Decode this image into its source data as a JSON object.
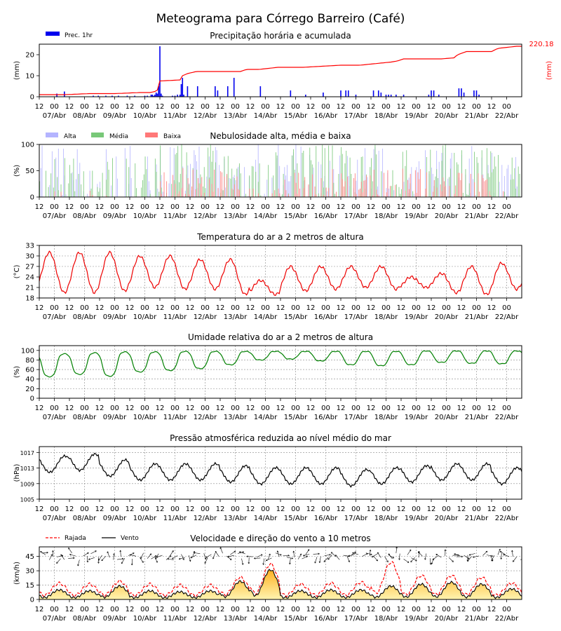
{
  "title": "Meteograma para Córrego Barreiro (Café)",
  "time_axis": {
    "hour_ticks": [
      "12",
      "00",
      "12",
      "00",
      "12",
      "00",
      "12",
      "00",
      "12",
      "00",
      "12",
      "00",
      "12",
      "00",
      "12",
      "00",
      "12",
      "00",
      "12",
      "00",
      "12",
      "00",
      "12",
      "00",
      "12",
      "00",
      "12",
      "00",
      "12",
      "00",
      "12",
      "00"
    ],
    "day_labels": [
      "07/Abr",
      "08/Abr",
      "09/Abr",
      "10/Abr",
      "11/Abr",
      "12/Abr",
      "13/Abr",
      "14/Abr",
      "15/Abr",
      "16/Abr",
      "17/Abr",
      "18/Abr",
      "19/Abr",
      "20/Abr",
      "21/Abr",
      "22/Abr"
    ]
  },
  "chart_data": [
    {
      "type": "bar",
      "title": "Precipitação horária e acumulada",
      "ylabel": "(mm)",
      "ylabel_right": "(mm)",
      "right_value_label": "220.18",
      "ylim": [
        0,
        25
      ],
      "yticks": [
        "0",
        "10",
        "20"
      ],
      "legend": [
        "Prec. 1hr"
      ],
      "colors": {
        "bars": "#0000ee",
        "accum": "#ff0000"
      },
      "series": [
        {
          "name": "Prec. 1hr",
          "type": "bar",
          "x": [
            14,
            20,
            43,
            47,
            53,
            58,
            63,
            70,
            76,
            84,
            86,
            89,
            90,
            91,
            92,
            93,
            94,
            95,
            96,
            97,
            98,
            106,
            108,
            110,
            112,
            113,
            114,
            115,
            118,
            126,
            140,
            142,
            150,
            155,
            176,
            200,
            212,
            226,
            240,
            244,
            246,
            252,
            266,
            270,
            272,
            276,
            278,
            280,
            284,
            290,
            310,
            312,
            314,
            318,
            334,
            336,
            338,
            346,
            348,
            350
          ],
          "values": [
            1.5,
            2.5,
            0.5,
            0.5,
            0.5,
            0.5,
            0.5,
            0.5,
            0.5,
            0.5,
            0.5,
            1,
            1,
            0.5,
            1,
            2,
            1.5,
            5,
            24,
            1.5,
            0.5,
            0.5,
            0.5,
            1,
            1,
            6,
            9,
            1,
            5,
            5,
            5,
            3,
            5,
            9,
            5,
            3,
            1,
            2,
            3,
            3,
            3,
            1,
            3,
            3,
            2,
            1,
            1,
            1,
            1,
            1,
            1,
            3,
            3,
            1,
            4,
            4,
            2,
            3,
            3,
            1
          ]
        },
        {
          "name": "acumulada",
          "type": "line",
          "x": [
            0,
            20,
            40,
            60,
            80,
            88,
            92,
            95,
            96,
            112,
            114,
            118,
            125,
            160,
            165,
            175,
            190,
            210,
            225,
            240,
            245,
            255,
            280,
            285,
            290,
            320,
            330,
            333,
            340,
            360,
            365,
            380
          ],
          "values": [
            1,
            1,
            1.5,
            1.5,
            2,
            2,
            2.5,
            3.5,
            7.5,
            8,
            10,
            11,
            12,
            12,
            13,
            13,
            14,
            14,
            14.5,
            15,
            15,
            15,
            16.5,
            17,
            18,
            18,
            18.5,
            20,
            21.5,
            21.5,
            23,
            24
          ]
        }
      ]
    },
    {
      "type": "bar",
      "title": "Nebulosidade alta, média e baixa",
      "ylabel": "(%)",
      "ylim": [
        0,
        100
      ],
      "yticks": [
        "0",
        "50",
        "100"
      ],
      "legend": [
        "Alta",
        "Média",
        "Baixa"
      ],
      "colors": {
        "alta": "#b4b4ff",
        "media": "#78c878",
        "baixa": "#ff7878"
      },
      "series": [
        {
          "name": "Alta",
          "key": "alta"
        },
        {
          "name": "Média",
          "key": "media"
        },
        {
          "name": "Baixa",
          "key": "baixa"
        }
      ]
    },
    {
      "type": "line",
      "title": "Temperatura do ar a 2 metros de altura",
      "ylabel": "(°C)",
      "ylim": [
        18,
        33
      ],
      "yticks": [
        "18",
        "21",
        "24",
        "27",
        "30",
        "33"
      ],
      "colors": {
        "line": "#ee0000"
      },
      "series": [
        {
          "name": "",
          "min": [
            20,
            19.5,
            19.5,
            20,
            21,
            20.5,
            20.5,
            19,
            19,
            20,
            20.5,
            21,
            20.5,
            21,
            19.5,
            19,
            20.5,
            20.5
          ],
          "max": [
            31,
            31,
            31,
            30,
            30,
            29,
            29,
            23,
            27,
            27,
            27,
            27,
            24,
            25,
            27,
            28
          ]
        }
      ]
    },
    {
      "type": "line",
      "title": "Umidade relativa do ar a 2 metros de altura",
      "ylabel": "(%)",
      "ylim": [
        0,
        110
      ],
      "yticks": [
        "0",
        "20",
        "40",
        "60",
        "80",
        "100"
      ],
      "colors": {
        "line": "#008000"
      },
      "series": [
        {
          "name": "",
          "min": [
            45,
            50,
            46,
            55,
            58,
            62,
            70,
            80,
            82,
            78,
            70,
            68,
            70,
            75,
            73,
            72,
            70
          ],
          "max": [
            92,
            93,
            95,
            97,
            97,
            98,
            98,
            98,
            98,
            98,
            98,
            98,
            98,
            99,
            99,
            99
          ]
        }
      ]
    },
    {
      "type": "line",
      "title": "Pressão atmosférica reduzida ao nível médio do mar",
      "ylabel": "(hPa)",
      "ylim": [
        1005,
        1018.5
      ],
      "yticks": [
        "1005",
        "1009",
        "1013",
        "1017"
      ],
      "colors": {
        "line": "#000000"
      },
      "series": [
        {
          "name": "",
          "mean": [
            1014,
            1014.5,
            1013,
            1012,
            1012,
            1012,
            1011.5,
            1011,
            1011,
            1011,
            1010.5,
            1011,
            1011.5,
            1012,
            1012,
            1011,
            1011
          ]
        }
      ]
    },
    {
      "type": "area",
      "title": "Velocidade e direção do vento a 10 metros",
      "ylabel": "(km/h)",
      "ylim": [
        0,
        55
      ],
      "yticks": [
        "0",
        "15",
        "30",
        "45"
      ],
      "legend": [
        "Rajada",
        "Vento"
      ],
      "colors": {
        "gust": "#ff0000",
        "wind": "#000000",
        "fill_top": "#ffb020",
        "fill_bottom": "#fff4b0"
      },
      "series": [
        {
          "name": "Rajada",
          "peaks": [
            14,
            13,
            16,
            13,
            12,
            12,
            20,
            34,
            13,
            14,
            15,
            36,
            22,
            22,
            20,
            14,
            8
          ]
        },
        {
          "name": "Vento",
          "peaks": [
            9,
            8,
            13,
            8,
            7,
            8,
            18,
            30,
            8,
            9,
            9,
            13,
            15,
            17,
            15,
            10,
            5
          ]
        }
      ]
    }
  ]
}
